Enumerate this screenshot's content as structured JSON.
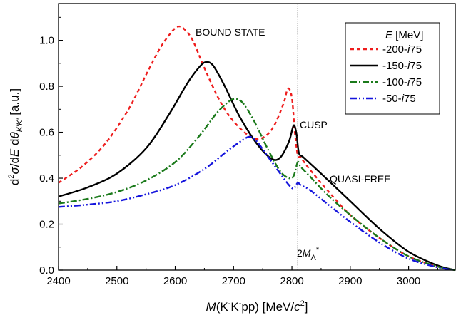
{
  "chart_data": {
    "type": "line",
    "xlim": [
      2400,
      3080
    ],
    "ylim": [
      0.0,
      1.16
    ],
    "x_ticks": [
      2400,
      2500,
      2600,
      2700,
      2800,
      2900,
      3000
    ],
    "x_tick_labels": [
      "2400",
      "2500",
      "2600",
      "2700",
      "2800",
      "2900",
      "3000"
    ],
    "y_ticks": [
      0.0,
      0.2,
      0.4,
      0.6,
      0.8,
      1.0
    ],
    "y_tick_labels": [
      "0.0",
      "0.2",
      "0.4",
      "0.6",
      "0.8",
      "1.0"
    ],
    "xlabel": {
      "pre": "M",
      "mid": "(K",
      "sup1": "-",
      "mid2": "K",
      "sup2": "-",
      "post": "pp) [MeV/",
      "c": "c",
      "sup3": "2",
      "end": "]"
    },
    "ylabel": {
      "d1": "d",
      "sup": "2",
      "sigma": "σ",
      "mid": "/d",
      "E": "E",
      "mid2": " d",
      "theta": "θ",
      "sub": "K'K'",
      "end": " [a.u.]"
    },
    "grid": false,
    "legend_position": "top-right",
    "legend_title": {
      "italic": "E",
      "rest": " [MeV]"
    },
    "threshold": {
      "x": 2810,
      "label_pre": "2",
      "label_M": "M",
      "label_sub": "Λ",
      "label_sup": "*"
    },
    "annotations": {
      "bound": "BOUND STATE",
      "cusp": "CUSP",
      "quasi": "QUASI-FREE"
    },
    "series": [
      {
        "name": "-200-i75",
        "legend_pre": "-200-",
        "legend_i": "i",
        "legend_post": "75",
        "color": "#ee1c1c",
        "dash": "5,4",
        "x": [
          2400,
          2440,
          2480,
          2520,
          2550,
          2575,
          2595,
          2605,
          2615,
          2630,
          2650,
          2680,
          2710,
          2740,
          2765,
          2785,
          2793,
          2800,
          2805,
          2810,
          2815,
          2830,
          2860,
          2900,
          2950,
          3000,
          3050,
          3080
        ],
        "y": [
          0.38,
          0.45,
          0.55,
          0.7,
          0.85,
          0.97,
          1.04,
          1.06,
          1.05,
          1.0,
          0.88,
          0.72,
          0.62,
          0.57,
          0.61,
          0.72,
          0.79,
          0.75,
          0.6,
          0.5,
          0.49,
          0.44,
          0.35,
          0.24,
          0.14,
          0.06,
          0.015,
          0.0
        ]
      },
      {
        "name": "-150-i75",
        "legend_pre": "-150-",
        "legend_i": "i",
        "legend_post": "75",
        "color": "#000000",
        "dash": "",
        "x": [
          2400,
          2450,
          2500,
          2550,
          2590,
          2620,
          2640,
          2652,
          2665,
          2685,
          2710,
          2740,
          2765,
          2780,
          2795,
          2803,
          2808,
          2812,
          2820,
          2850,
          2900,
          2950,
          3000,
          3050,
          3080
        ],
        "y": [
          0.32,
          0.36,
          0.42,
          0.53,
          0.68,
          0.81,
          0.88,
          0.905,
          0.89,
          0.8,
          0.67,
          0.55,
          0.485,
          0.49,
          0.56,
          0.63,
          0.59,
          0.51,
          0.49,
          0.42,
          0.3,
          0.18,
          0.08,
          0.02,
          0.0
        ]
      },
      {
        "name": "-100-i75",
        "legend_pre": "-100-",
        "legend_i": "i",
        "legend_post": "75",
        "color": "#1b7a1b",
        "dash": "9,3,2,3",
        "x": [
          2400,
          2450,
          2500,
          2550,
          2600,
          2640,
          2670,
          2690,
          2702,
          2715,
          2735,
          2760,
          2780,
          2795,
          2803,
          2810,
          2815,
          2830,
          2860,
          2900,
          2950,
          3000,
          3050,
          3080
        ],
        "y": [
          0.29,
          0.31,
          0.34,
          0.39,
          0.47,
          0.58,
          0.68,
          0.73,
          0.745,
          0.73,
          0.65,
          0.52,
          0.43,
          0.4,
          0.41,
          0.47,
          0.45,
          0.41,
          0.33,
          0.24,
          0.14,
          0.06,
          0.015,
          0.0
        ]
      },
      {
        "name": "-50-i75",
        "legend_pre": "-50-",
        "legend_i": "i",
        "legend_post": "75",
        "color": "#1515dd",
        "dash": "9,3,2,3,2,3",
        "x": [
          2400,
          2450,
          2500,
          2550,
          2600,
          2650,
          2690,
          2715,
          2728,
          2740,
          2760,
          2780,
          2795,
          2803,
          2810,
          2815,
          2830,
          2860,
          2900,
          2950,
          3000,
          3050,
          3080
        ],
        "y": [
          0.275,
          0.285,
          0.3,
          0.33,
          0.37,
          0.44,
          0.52,
          0.565,
          0.58,
          0.56,
          0.49,
          0.42,
          0.37,
          0.355,
          0.38,
          0.37,
          0.35,
          0.29,
          0.21,
          0.12,
          0.05,
          0.012,
          0.0
        ]
      }
    ]
  }
}
